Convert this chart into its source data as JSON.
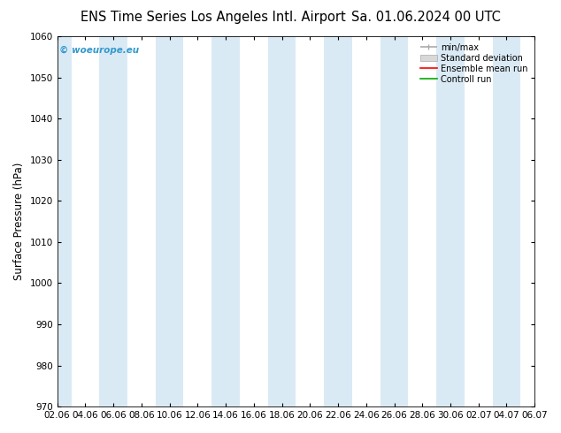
{
  "title_left": "ENS Time Series Los Angeles Intl. Airport",
  "title_right": "Sa. 01.06.2024 00 UTC",
  "ylabel": "Surface Pressure (hPa)",
  "ylim": [
    970,
    1060
  ],
  "yticks": [
    970,
    980,
    990,
    1000,
    1010,
    1020,
    1030,
    1040,
    1050,
    1060
  ],
  "xtick_labels": [
    "02.06",
    "04.06",
    "06.06",
    "08.06",
    "10.06",
    "12.06",
    "14.06",
    "16.06",
    "18.06",
    "20.06",
    "22.06",
    "24.06",
    "26.06",
    "28.06",
    "30.06",
    "02.07",
    "04.07",
    "06.07"
  ],
  "num_xticks": 18,
  "band_color": "#daeaf5",
  "bg_color": "#ffffff",
  "watermark": "© woeurope.eu",
  "watermark_color": "#3399cc",
  "legend_items": [
    "min/max",
    "Standard deviation",
    "Ensemble mean run",
    "Controll run"
  ],
  "legend_colors": [
    "#aaaaaa",
    "#cccccc",
    "#ff0000",
    "#00aa00"
  ],
  "title_fontsize": 10.5,
  "tick_fontsize": 7.5,
  "ylabel_fontsize": 8.5
}
